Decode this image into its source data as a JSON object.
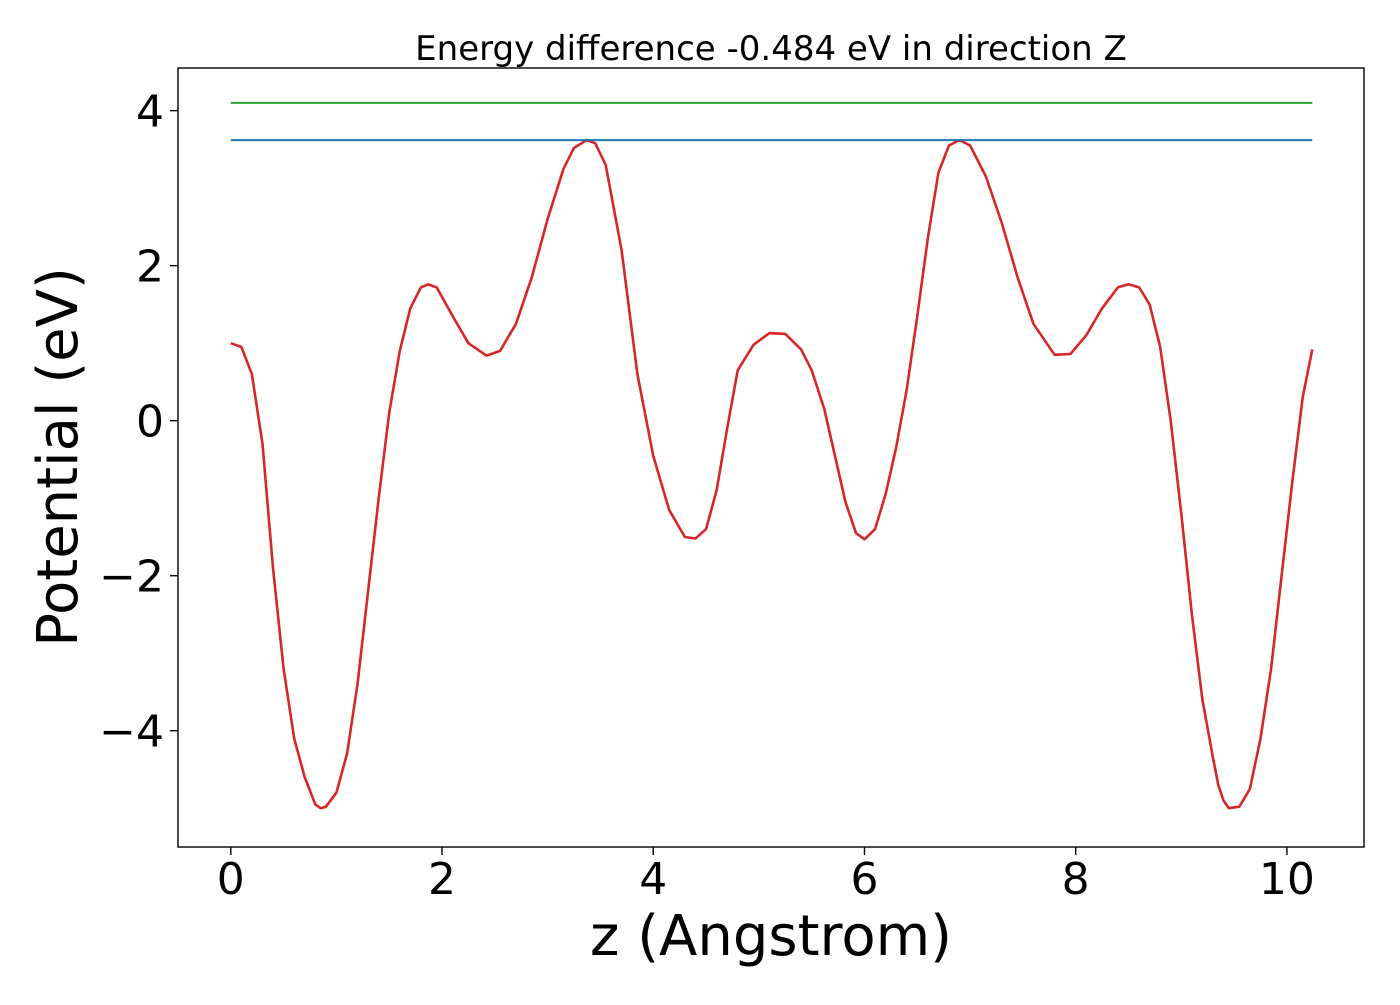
{
  "chart_data": {
    "type": "line",
    "title": "Energy difference -0.484 eV in direction Z",
    "xlabel": "z (Angstrom)",
    "ylabel": "Potential (eV)",
    "xlim": [
      -0.5,
      10.73
    ],
    "ylim": [
      -5.5,
      4.55
    ],
    "xticks": [
      0,
      2,
      4,
      6,
      8,
      10
    ],
    "xtick_labels": [
      "0",
      "2",
      "4",
      "6",
      "8",
      "10"
    ],
    "yticks": [
      -4,
      -2,
      0,
      2,
      4
    ],
    "ytick_labels": [
      "−4",
      "−2",
      "0",
      "2",
      "4"
    ],
    "grid": false,
    "legend": "none",
    "series": [
      {
        "color": "#d62728",
        "x": [
          0.0,
          0.1,
          0.2,
          0.3,
          0.4,
          0.5,
          0.6,
          0.7,
          0.8,
          0.85,
          0.9,
          1.0,
          1.1,
          1.2,
          1.3,
          1.4,
          1.5,
          1.6,
          1.7,
          1.8,
          1.87,
          1.95,
          2.1,
          2.25,
          2.42,
          2.55,
          2.7,
          2.85,
          3.0,
          3.15,
          3.25,
          3.37,
          3.45,
          3.55,
          3.7,
          3.85,
          4.0,
          4.15,
          4.3,
          4.4,
          4.5,
          4.6,
          4.7,
          4.8,
          4.95,
          5.1,
          5.25,
          5.4,
          5.5,
          5.62,
          5.72,
          5.82,
          5.92,
          6.0,
          6.1,
          6.2,
          6.3,
          6.4,
          6.5,
          6.6,
          6.7,
          6.8,
          6.9,
          7.0,
          7.15,
          7.3,
          7.45,
          7.6,
          7.8,
          7.95,
          8.1,
          8.25,
          8.4,
          8.5,
          8.6,
          8.7,
          8.8,
          8.9,
          9.0,
          9.1,
          9.2,
          9.3,
          9.35,
          9.4,
          9.45,
          9.55,
          9.65,
          9.75,
          9.85,
          9.95,
          10.05,
          10.15,
          10.24
        ],
        "values": [
          1.0,
          0.95,
          0.6,
          -0.3,
          -1.9,
          -3.2,
          -4.1,
          -4.6,
          -4.95,
          -5.0,
          -4.98,
          -4.8,
          -4.3,
          -3.4,
          -2.2,
          -1.0,
          0.1,
          0.9,
          1.45,
          1.72,
          1.76,
          1.72,
          1.35,
          1.0,
          0.84,
          0.9,
          1.25,
          1.85,
          2.6,
          3.25,
          3.52,
          3.62,
          3.58,
          3.3,
          2.2,
          0.6,
          -0.45,
          -1.15,
          -1.5,
          -1.52,
          -1.4,
          -0.9,
          -0.1,
          0.65,
          0.98,
          1.13,
          1.12,
          0.92,
          0.65,
          0.15,
          -0.45,
          -1.05,
          -1.45,
          -1.53,
          -1.4,
          -0.95,
          -0.35,
          0.4,
          1.35,
          2.35,
          3.2,
          3.55,
          3.62,
          3.55,
          3.15,
          2.55,
          1.85,
          1.25,
          0.85,
          0.86,
          1.1,
          1.45,
          1.72,
          1.76,
          1.72,
          1.5,
          0.95,
          0.0,
          -1.2,
          -2.5,
          -3.6,
          -4.35,
          -4.7,
          -4.9,
          -5.0,
          -4.98,
          -4.75,
          -4.1,
          -3.2,
          -2.0,
          -0.8,
          0.3,
          0.92
        ]
      },
      {
        "color": "#1f77b4",
        "x": [
          0.0,
          10.24
        ],
        "values": [
          3.62,
          3.62
        ]
      },
      {
        "color": "#2ca02c",
        "x": [
          0.0,
          10.24
        ],
        "values": [
          4.1,
          4.1
        ]
      }
    ]
  }
}
